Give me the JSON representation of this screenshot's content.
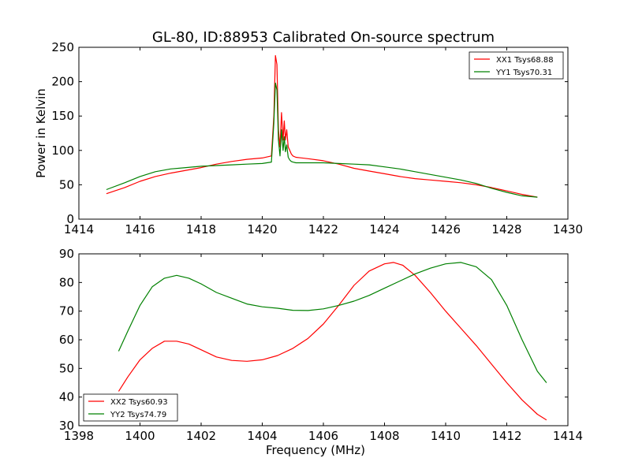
{
  "title": "GL-80, ID:88953 Calibrated On-source spectrum",
  "chart_data": [
    {
      "type": "line",
      "xlabel": "",
      "ylabel": "Power in Kelvin",
      "xlim": [
        1414,
        1430
      ],
      "ylim": [
        0,
        250
      ],
      "xticks": [
        "1414",
        "1416",
        "1418",
        "1420",
        "1422",
        "1424",
        "1426",
        "1428",
        "1430"
      ],
      "yticks": [
        "0",
        "50",
        "100",
        "150",
        "200",
        "250"
      ],
      "grid": false,
      "legend_position": "top-right",
      "series": [
        {
          "name": "XX1 Tsys68.88",
          "color": "#ff0000",
          "x": [
            1414.9,
            1415.5,
            1416,
            1416.5,
            1417,
            1417.5,
            1418,
            1418.5,
            1419,
            1419.5,
            1420,
            1420.3,
            1420.38,
            1420.43,
            1420.48,
            1420.53,
            1420.58,
            1420.63,
            1420.68,
            1420.72,
            1420.76,
            1420.8,
            1420.85,
            1420.9,
            1420.95,
            1421.0,
            1421.1,
            1421.5,
            1422,
            1422.5,
            1423,
            1423.5,
            1424,
            1424.5,
            1425,
            1425.5,
            1426,
            1426.5,
            1427,
            1427.5,
            1428,
            1428.5,
            1429
          ],
          "y": [
            37,
            46,
            55,
            62,
            67,
            71,
            75,
            80,
            84,
            87,
            89,
            92,
            150,
            238,
            225,
            130,
            105,
            155,
            115,
            143,
            115,
            130,
            105,
            100,
            95,
            92,
            90,
            88,
            85,
            80,
            74,
            70,
            66,
            62,
            59,
            57,
            55,
            53,
            50,
            46,
            41,
            36,
            32
          ]
        },
        {
          "name": "YY1 Tsys70.31",
          "color": "#008000",
          "x": [
            1414.9,
            1415.5,
            1416,
            1416.5,
            1417,
            1417.5,
            1418,
            1418.5,
            1419,
            1419.5,
            1420,
            1420.3,
            1420.38,
            1420.43,
            1420.48,
            1420.53,
            1420.58,
            1420.63,
            1420.68,
            1420.72,
            1420.76,
            1420.8,
            1420.85,
            1420.9,
            1420.95,
            1421.0,
            1421.1,
            1421.5,
            1422,
            1422.5,
            1423,
            1423.5,
            1424,
            1424.5,
            1425,
            1425.5,
            1426,
            1426.5,
            1427,
            1427.5,
            1428,
            1428.5,
            1429
          ],
          "y": [
            43,
            53,
            62,
            69,
            73,
            75,
            77,
            78,
            79,
            80,
            81,
            83,
            140,
            198,
            188,
            115,
            92,
            130,
            100,
            120,
            98,
            108,
            90,
            86,
            84,
            83,
            82,
            82,
            82,
            81,
            80,
            79,
            76,
            73,
            69,
            65,
            61,
            57,
            52,
            45,
            39,
            34,
            32
          ]
        }
      ]
    },
    {
      "type": "line",
      "xlabel": "Frequency (MHz)",
      "ylabel": "",
      "xlim": [
        1398,
        1414
      ],
      "ylim": [
        30,
        90
      ],
      "xticks": [
        "1398",
        "1400",
        "1402",
        "1404",
        "1406",
        "1408",
        "1410",
        "1412",
        "1414"
      ],
      "yticks": [
        "30",
        "40",
        "50",
        "60",
        "70",
        "80",
        "90"
      ],
      "grid": false,
      "legend_position": "bottom-left",
      "series": [
        {
          "name": "XX2 Tsys60.93",
          "color": "#ff0000",
          "x": [
            1399.3,
            1399.6,
            1400.0,
            1400.4,
            1400.8,
            1401.2,
            1401.6,
            1402.0,
            1402.5,
            1403.0,
            1403.5,
            1404.0,
            1404.5,
            1405.0,
            1405.5,
            1406.0,
            1406.5,
            1407.0,
            1407.5,
            1408.0,
            1408.3,
            1408.6,
            1409.0,
            1409.5,
            1410.0,
            1410.5,
            1411.0,
            1411.5,
            1412.0,
            1412.5,
            1413.0,
            1413.3
          ],
          "y": [
            42,
            47,
            53,
            57,
            59.5,
            59.5,
            58.5,
            56.5,
            54,
            52.8,
            52.5,
            53,
            54.5,
            57,
            60.5,
            65.5,
            72,
            79,
            84,
            86.5,
            87,
            86,
            82.5,
            76.5,
            70,
            64,
            58,
            51.5,
            45,
            39,
            34,
            32
          ]
        },
        {
          "name": "YY2 Tsys74.79",
          "color": "#008000",
          "x": [
            1399.3,
            1399.6,
            1400.0,
            1400.4,
            1400.8,
            1401.2,
            1401.6,
            1402.0,
            1402.5,
            1403.0,
            1403.5,
            1404.0,
            1404.5,
            1405.0,
            1405.5,
            1406.0,
            1406.5,
            1407.0,
            1407.5,
            1408.0,
            1408.5,
            1409.0,
            1409.5,
            1410.0,
            1410.5,
            1411.0,
            1411.5,
            1412.0,
            1412.5,
            1413.0,
            1413.3
          ],
          "y": [
            56,
            63,
            72,
            78.5,
            81.5,
            82.5,
            81.5,
            79.5,
            76.5,
            74.5,
            72.5,
            71.5,
            71,
            70.3,
            70.2,
            70.8,
            72,
            73.5,
            75.5,
            78,
            80.5,
            83,
            85,
            86.5,
            87,
            85.5,
            81,
            72,
            60,
            49,
            45
          ]
        }
      ]
    }
  ]
}
